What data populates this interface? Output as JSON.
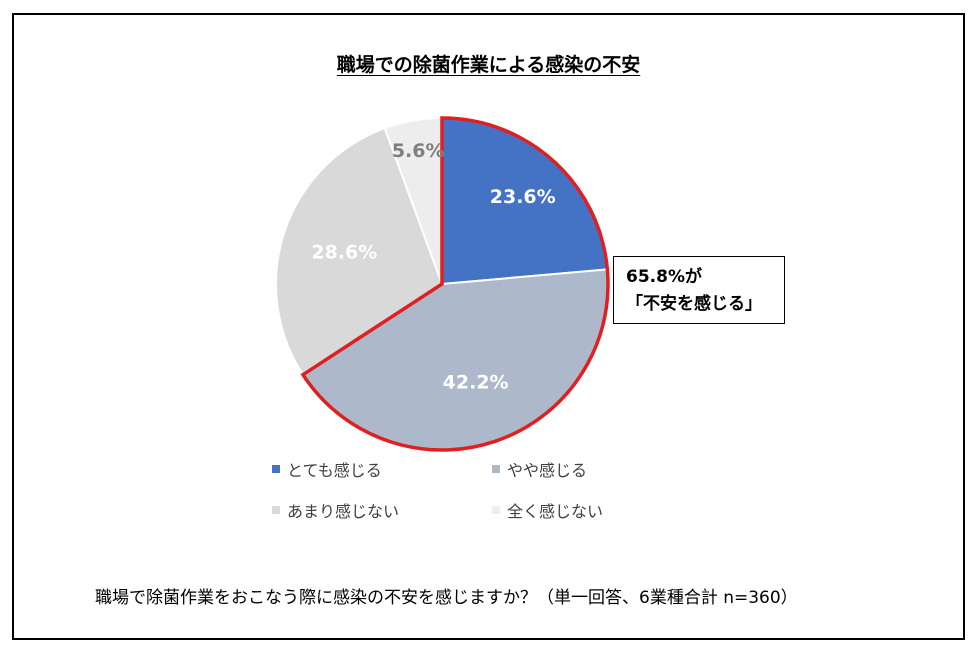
{
  "chart_data": {
    "type": "pie",
    "title": "職場での除菌作業による感染の不安",
    "categories": [
      "とても感じる",
      "やや感じる",
      "あまり感じない",
      "全く感じない"
    ],
    "values": [
      23.6,
      42.2,
      28.6,
      5.6
    ],
    "value_labels": [
      "23.6%",
      "42.2%",
      "28.6%",
      "5.6%"
    ],
    "colors": [
      "#4472C4",
      "#ADB9CA",
      "#D9D9D9",
      "#EDEDED"
    ],
    "label_colors": [
      "#ffffff",
      "#ffffff",
      "#ffffff",
      "#7f7f7f"
    ],
    "highlight_color": "#E02020",
    "legend_placement": "bottom"
  },
  "callout": {
    "line1": "65.8%が",
    "line2": "「不安を感じる」"
  },
  "footnote": "職場で除菌作業をおこなう際に感染の不安を感じますか？（単一回答、6業種合計 n=360）"
}
